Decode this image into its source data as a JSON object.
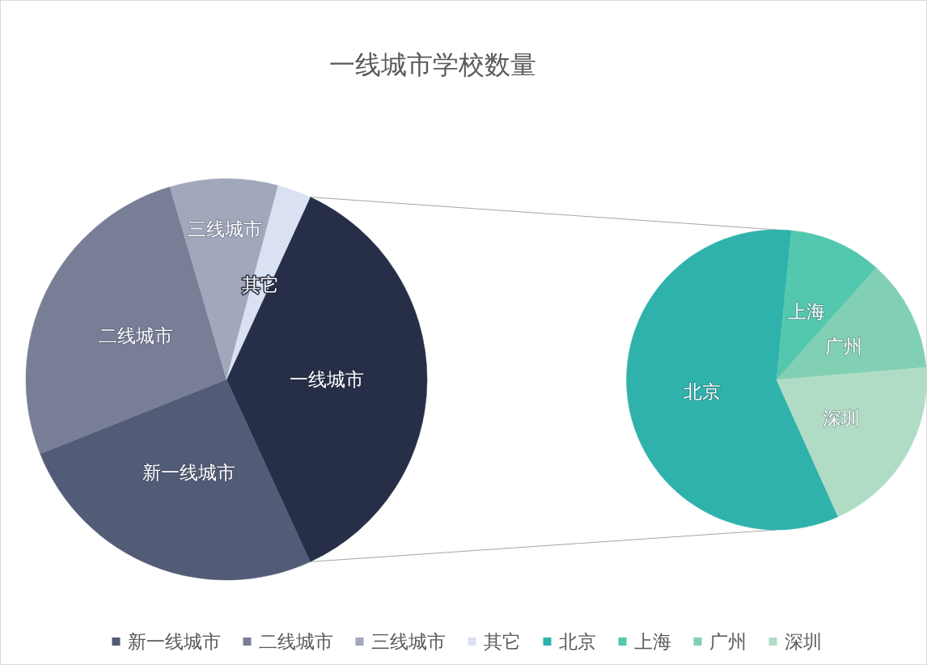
{
  "chart_data": [
    {
      "type": "pie",
      "title": "一线城市学校数量",
      "categories": [
        "一线城市",
        "新一线城市",
        "二线城市",
        "三线城市",
        "其它"
      ],
      "values": [
        36.3,
        25.8,
        26.5,
        8.7,
        2.7
      ],
      "colors": [
        "#272e48",
        "#535c77",
        "#777e96",
        "#a1a8bc",
        "#d9e1f2"
      ],
      "legend": "bottom"
    },
    {
      "type": "pie",
      "categories": [
        "北京",
        "上海",
        "广州",
        "深圳"
      ],
      "values": [
        58.3,
        10.0,
        12.1,
        19.6
      ],
      "colors": [
        "#2fb2ac",
        "#53c8ae",
        "#82d0b3",
        "#b0dcc6"
      ],
      "legend": "bottom"
    }
  ]
}
